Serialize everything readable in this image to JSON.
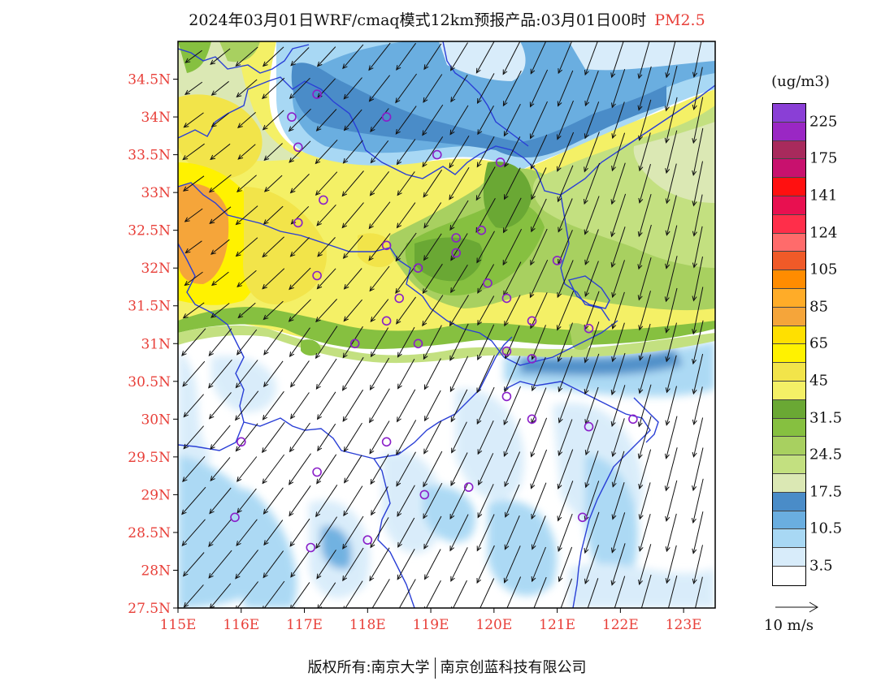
{
  "title": {
    "main": "2024年03月01日WRF/cmaq模式12km预报产品:03月01日00时",
    "pollutant": "PM2.5"
  },
  "map": {
    "lon_range": [
      115,
      123.5
    ],
    "lat_range": [
      27.5,
      35
    ],
    "lat_labels": [
      "34.5N",
      "34N",
      "33.5N",
      "33N",
      "32.5N",
      "32N",
      "31.5N",
      "31N",
      "30.5N",
      "30N",
      "29.5N",
      "29N",
      "28.5N",
      "28N",
      "27.5N"
    ],
    "lat_values": [
      34.5,
      34,
      33.5,
      33,
      32.5,
      32,
      31.5,
      31,
      30.5,
      30,
      29.5,
      29,
      28.5,
      28,
      27.5
    ],
    "lon_labels": [
      "115E",
      "116E",
      "117E",
      "118E",
      "119E",
      "120E",
      "121E",
      "122E",
      "123E"
    ],
    "lon_values": [
      115,
      116,
      117,
      118,
      119,
      120,
      121,
      122,
      123
    ],
    "label_color": "#e8403a",
    "boundary_color": "#2a3fd6",
    "station_color": "#8a1fc9",
    "stations": [
      [
        116.8,
        34.0
      ],
      [
        117.2,
        34.3
      ],
      [
        118.3,
        34.0
      ],
      [
        116.9,
        33.6
      ],
      [
        119.1,
        33.5
      ],
      [
        120.1,
        33.4
      ],
      [
        117.3,
        32.9
      ],
      [
        116.9,
        32.6
      ],
      [
        118.3,
        32.3
      ],
      [
        119.4,
        32.4
      ],
      [
        119.8,
        32.5
      ],
      [
        119.4,
        32.2
      ],
      [
        118.8,
        32.0
      ],
      [
        121.0,
        32.1
      ],
      [
        117.2,
        31.9
      ],
      [
        119.9,
        31.8
      ],
      [
        118.5,
        31.6
      ],
      [
        120.2,
        31.6
      ],
      [
        118.3,
        31.3
      ],
      [
        120.6,
        31.3
      ],
      [
        121.5,
        31.2
      ],
      [
        117.8,
        31.0
      ],
      [
        118.8,
        31.0
      ],
      [
        120.2,
        30.9
      ],
      [
        120.6,
        30.8
      ],
      [
        120.2,
        30.3
      ],
      [
        120.6,
        30.0
      ],
      [
        121.5,
        29.9
      ],
      [
        122.2,
        30.0
      ],
      [
        116.0,
        29.7
      ],
      [
        118.3,
        29.7
      ],
      [
        117.2,
        29.3
      ],
      [
        118.9,
        29.0
      ],
      [
        119.6,
        29.1
      ],
      [
        115.9,
        28.7
      ],
      [
        121.4,
        28.7
      ],
      [
        118.0,
        28.4
      ],
      [
        117.1,
        28.3
      ]
    ],
    "wind_reference_label": "10 m/s"
  },
  "legend": {
    "unit": "(ug/m3)",
    "colors": [
      "#8a3fd6",
      "#9a27c4",
      "#a82a5c",
      "#c8116e",
      "#ff1010",
      "#e81050",
      "#ff2e4a",
      "#ff6b6b",
      "#f05a28",
      "#ff8c00",
      "#ffac28",
      "#f5a53a",
      "#ffe000",
      "#fff200",
      "#f2e44a",
      "#f4f066",
      "#6aa834",
      "#86c040",
      "#a8d060",
      "#c3e080",
      "#dbe8b4",
      "#4a8cc8",
      "#6aaee0",
      "#a8d8f4",
      "#d8ecfa",
      "#ffffff"
    ],
    "tick_labels": [
      "225",
      "175",
      "141",
      "124",
      "105",
      "85",
      "65",
      "45",
      "31.5",
      "24.5",
      "17.5",
      "10.5",
      "3.5"
    ],
    "tick_positions": [
      1,
      3,
      5,
      7,
      9,
      11,
      13,
      15,
      17,
      19,
      21,
      23,
      25
    ]
  },
  "footer": {
    "left": "版权所有:南京大学",
    "right": "南京创蓝科技有限公司"
  }
}
